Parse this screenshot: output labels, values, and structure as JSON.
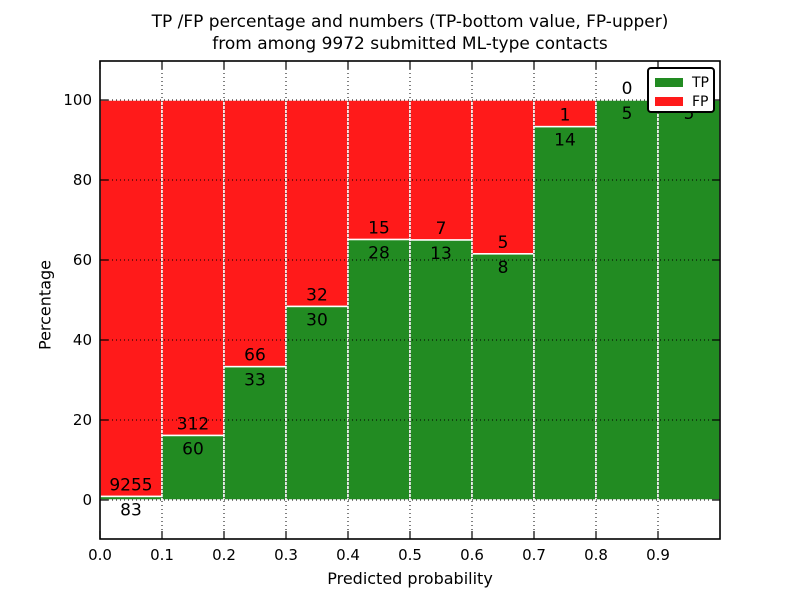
{
  "title": {
    "line1": "TP /FP percentage and numbers (TP-bottom value, FP-upper)",
    "line2": "from among 9972 submitted ML-type contacts"
  },
  "axes": {
    "xlabel": "Predicted probability",
    "ylabel": "Percentage",
    "x_ticks": [
      "0.0",
      "0.1",
      "0.2",
      "0.3",
      "0.4",
      "0.5",
      "0.6",
      "0.7",
      "0.8",
      "0.9"
    ],
    "y_ticks": [
      "0",
      "20",
      "40",
      "60",
      "80",
      "100"
    ]
  },
  "legend": {
    "items": [
      {
        "label": "TP",
        "color": "#228b22"
      },
      {
        "label": "FP",
        "color": "#ff1a1a"
      }
    ]
  },
  "colors": {
    "tp_green": "#228b22",
    "fp_red": "#ff1a1a",
    "bar_edge": "#ffffff",
    "grid": "#000000",
    "frame": "#000000"
  },
  "chart_data": {
    "type": "bar",
    "stacked": true,
    "normalized_to_percent": true,
    "title": "TP /FP percentage and numbers (TP-bottom value, FP-upper) from among 9972 submitted ML-type contacts",
    "xlabel": "Predicted probability",
    "ylabel": "Percentage",
    "categories": [
      "0.0-0.1",
      "0.1-0.2",
      "0.2-0.3",
      "0.3-0.4",
      "0.4-0.5",
      "0.5-0.6",
      "0.6-0.7",
      "0.7-0.8",
      "0.8-0.9",
      "0.9-1.0"
    ],
    "bin_width": 0.1,
    "series": [
      {
        "name": "TP",
        "position": "bottom",
        "color": "#228b22",
        "counts": [
          83,
          60,
          33,
          30,
          28,
          13,
          8,
          14,
          5,
          5
        ],
        "percent": [
          0.9,
          16.1,
          33.3,
          48.4,
          65.1,
          65.0,
          61.5,
          93.3,
          100.0,
          100.0
        ]
      },
      {
        "name": "FP",
        "position": "top",
        "color": "#ff1a1a",
        "counts": [
          9255,
          312,
          66,
          32,
          15,
          7,
          5,
          1,
          0,
          0
        ],
        "percent": [
          99.1,
          83.9,
          66.7,
          51.6,
          34.9,
          35.0,
          38.5,
          6.7,
          0.0,
          0.0
        ]
      }
    ],
    "total_contacts": 9972,
    "bar_label_note": "TP count printed below segment boundary, FP count above it",
    "xlim": [
      0.0,
      1.0
    ],
    "ylim": [
      -10,
      110
    ],
    "grid": "dotted",
    "legend_position": "upper right"
  }
}
